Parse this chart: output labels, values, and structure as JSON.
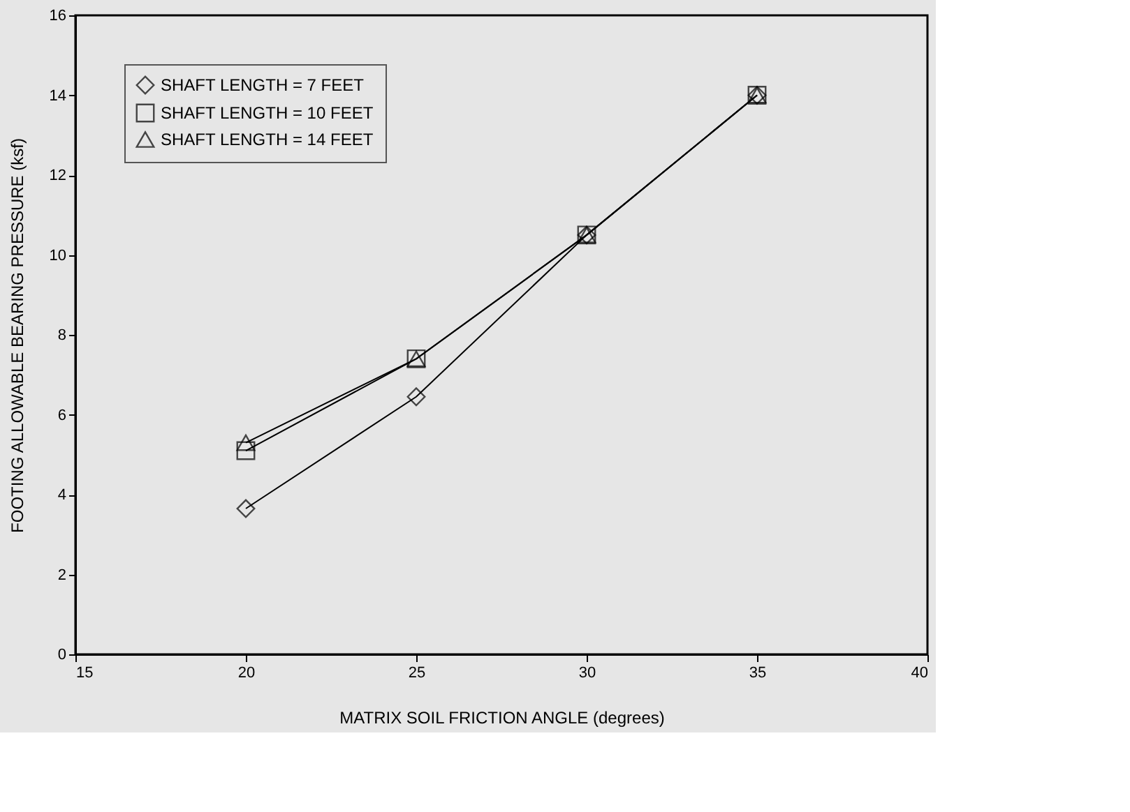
{
  "chart_data": {
    "type": "line",
    "xlabel": "MATRIX SOIL FRICTION ANGLE (degrees)",
    "ylabel": "FOOTING ALLOWABLE BEARING PRESSURE (ksf)",
    "x": [
      20,
      25,
      30,
      35
    ],
    "series": [
      {
        "name": "SHAFT LENGTH = 7 FEET",
        "color": "#000000",
        "marker": "diamond",
        "values": [
          3.65,
          6.45,
          10.5,
          14.0
        ]
      },
      {
        "name": "SHAFT LENGTH = 10 FEET",
        "color": "#000000",
        "marker": "square",
        "values": [
          5.1,
          7.4,
          10.5,
          14.0
        ]
      },
      {
        "name": "SHAFT LENGTH = 14 FEET",
        "color": "#000000",
        "marker": "triangle",
        "values": [
          5.3,
          7.4,
          10.5,
          14.0
        ]
      }
    ],
    "xlim": [
      15,
      40
    ],
    "xticks": [
      15,
      20,
      25,
      30,
      35,
      40
    ],
    "ylim": [
      0,
      16
    ],
    "yticks": [
      0,
      2,
      4,
      6,
      8,
      10,
      12,
      14,
      16
    ],
    "grid": false,
    "legend": "top left",
    "line_style": "solid"
  }
}
